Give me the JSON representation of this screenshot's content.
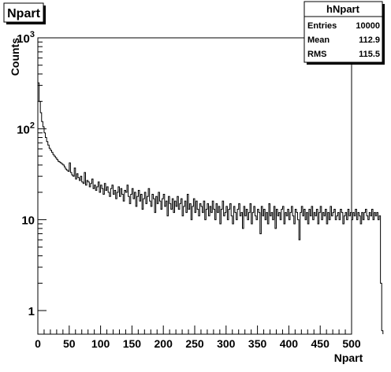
{
  "title_box": "Npart",
  "stats": {
    "name": "hNpart",
    "rows": [
      {
        "key": "Entries",
        "value": "10000"
      },
      {
        "key": "Mean",
        "value": "112.9"
      },
      {
        "key": "RMS",
        "value": "115.5"
      }
    ]
  },
  "chart_data": {
    "type": "histogram",
    "title": "Npart",
    "xlabel": "Npart",
    "ylabel": "Counts",
    "xlim": [
      0,
      500
    ],
    "ylim": [
      0.55,
      1000
    ],
    "y_scale": "log",
    "grid": false,
    "x_ticks": [
      "0",
      "50",
      "100",
      "150",
      "200",
      "250",
      "300",
      "350",
      "400",
      "450",
      "500"
    ],
    "y_ticks": [
      "1",
      "10",
      "10^2",
      "10^3"
    ],
    "series": [
      {
        "bins": {
          "start": 0,
          "width": 2
        },
        "values": [
          320,
          200,
          150,
          120,
          105,
          90,
          80,
          72,
          66,
          61,
          58,
          55,
          52,
          50,
          48,
          46,
          44,
          43,
          42,
          41,
          40,
          38,
          36,
          35,
          34,
          42,
          33,
          31,
          30,
          37,
          28,
          32,
          29,
          27,
          30,
          26,
          25,
          33,
          24,
          27,
          26,
          23,
          25,
          28,
          22,
          24,
          21,
          23,
          26,
          20,
          24,
          22,
          19,
          25,
          21,
          23,
          20,
          18,
          22,
          24,
          19,
          21,
          17,
          20,
          23,
          18,
          22,
          19,
          16,
          21,
          20,
          24,
          18,
          15,
          19,
          22,
          17,
          20,
          14,
          18,
          21,
          16,
          19,
          13,
          17,
          20,
          15,
          18,
          22,
          16,
          14,
          19,
          17,
          12,
          18,
          15,
          20,
          16,
          13,
          17,
          19,
          14,
          16,
          11,
          18,
          15,
          13,
          17,
          12,
          16,
          14,
          18,
          13,
          15,
          17,
          11,
          14,
          16,
          12,
          19,
          13,
          15,
          10,
          14,
          17,
          12,
          16,
          13,
          11,
          15,
          14,
          12,
          16,
          10,
          13,
          15,
          11,
          14,
          12,
          16,
          13,
          10,
          15,
          12,
          14,
          9,
          13,
          16,
          11,
          12,
          14,
          10,
          13,
          15,
          11,
          9,
          14,
          12,
          10,
          13,
          15,
          11,
          12,
          8,
          14,
          11,
          13,
          10,
          12,
          15,
          9,
          12,
          14,
          11,
          10,
          13,
          12,
          7,
          14,
          11,
          13,
          10,
          12,
          9,
          15,
          11,
          12,
          10,
          14,
          8,
          13,
          11,
          12,
          10,
          13,
          14,
          9,
          12,
          11,
          13,
          10,
          12,
          14,
          11,
          9,
          13,
          12,
          10,
          6,
          12,
          14,
          11,
          13,
          10,
          12,
          9,
          13,
          11,
          14,
          10,
          12,
          11,
          13,
          9,
          12,
          14,
          10,
          12,
          11,
          13,
          9,
          12,
          10,
          14,
          11,
          12,
          13,
          10,
          11,
          12,
          10,
          13,
          12,
          9,
          11,
          12,
          10,
          13,
          11,
          12,
          10,
          12,
          11,
          13,
          10,
          12,
          11,
          9,
          12,
          10,
          12,
          13,
          11,
          10,
          12,
          11,
          13,
          10,
          12,
          11,
          12,
          10,
          11,
          2,
          0.6
        ]
      }
    ]
  }
}
